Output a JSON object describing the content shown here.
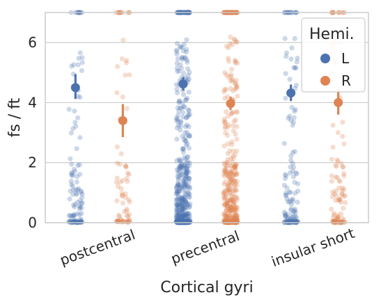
{
  "chart_data": {
    "type": "scatter",
    "subtype": "stripplot-with-pointplot",
    "xlabel": "Cortical gyri",
    "ylabel": "fs / ft",
    "categories": [
      "postcentral",
      "precentral",
      "insular short"
    ],
    "ylim": [
      0,
      7
    ],
    "yticks": [
      "0",
      "2",
      "4",
      "6"
    ],
    "grid": "horizontal",
    "legend": {
      "title": "Hemi.",
      "placement": "top-right",
      "entries": [
        "L",
        "R"
      ]
    },
    "series": [
      {
        "name": "L",
        "color": "#4c72b0",
        "means": [
          4.5,
          4.62,
          4.32
        ],
        "ci_low": [
          4.12,
          4.4,
          4.05
        ],
        "ci_high": [
          4.95,
          4.85,
          4.6
        ]
      },
      {
        "name": "R",
        "color": "#dd8452",
        "means": [
          3.4,
          3.97,
          4.0
        ],
        "ci_low": [
          2.85,
          3.75,
          3.6
        ],
        "ci_high": [
          3.95,
          4.2,
          4.45
        ]
      }
    ]
  }
}
